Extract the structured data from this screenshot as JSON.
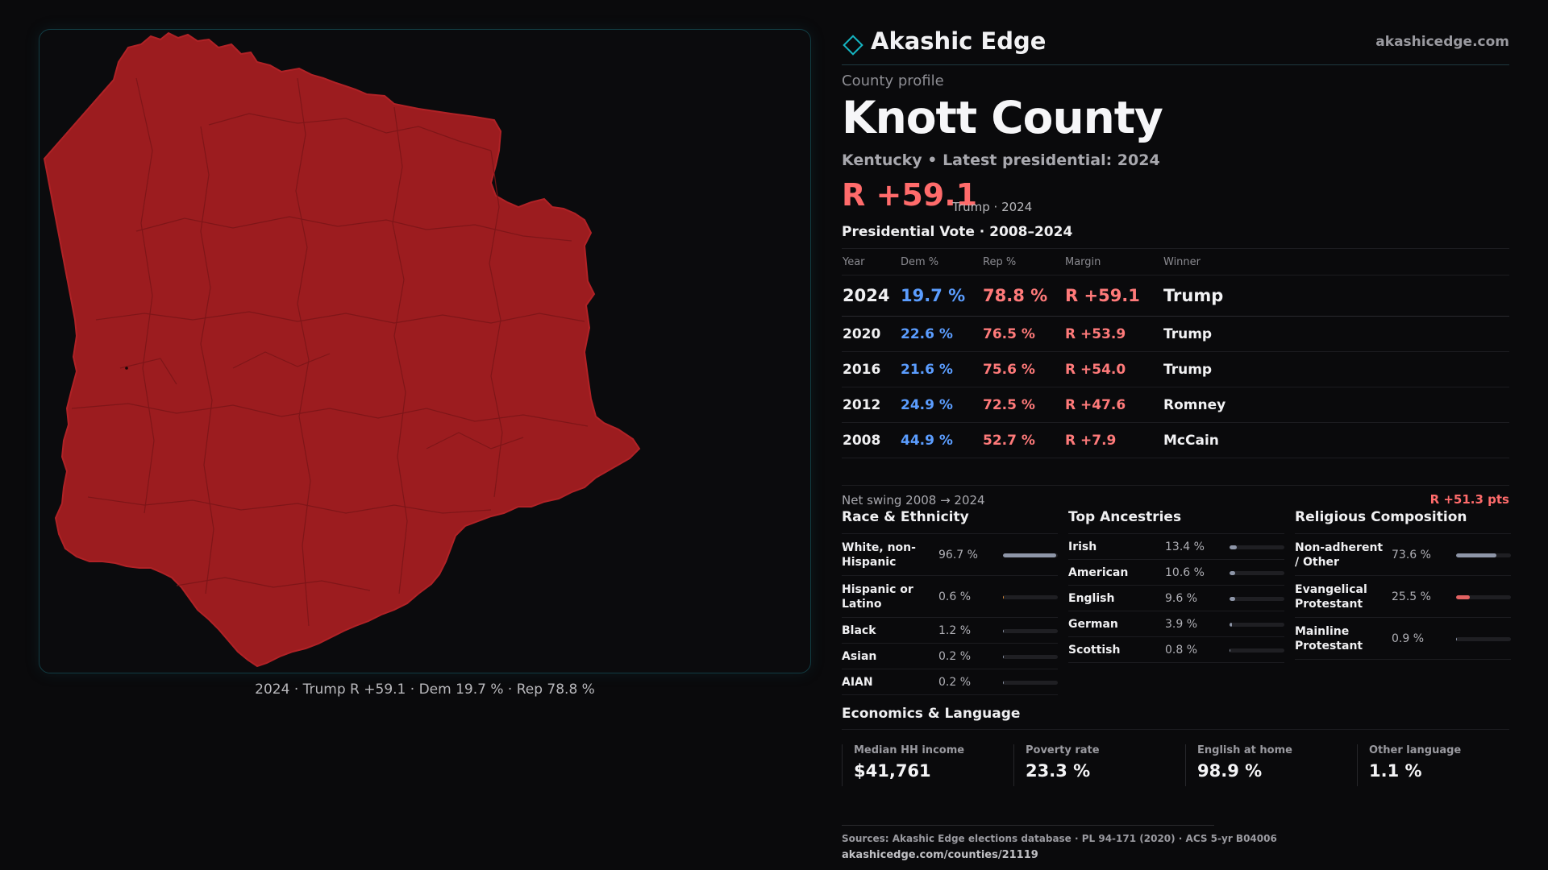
{
  "map": {
    "county_fill": "#9c1c1f",
    "caption": "2024 · Trump R +59.1 · Dem 19.7 % · Rep 78.8 %"
  },
  "brand": {
    "name": "Akashic Edge",
    "url": "akashicedge.com",
    "accent": "#15b5c2"
  },
  "profile": {
    "eyebrow": "County profile",
    "county": "Knott County",
    "subtitle": "Kentucky • Latest presidential: 2024",
    "margin": "R +59.1",
    "margin_note": "Trump · 2024"
  },
  "presidential": {
    "title": "Presidential Vote · 2008–2024",
    "headers": [
      "Year",
      "Dem %",
      "Rep %",
      "Margin",
      "Winner"
    ],
    "rows": [
      {
        "year": "2024",
        "dem": "19.7 %",
        "rep": "78.8 %",
        "margin": "R +59.1",
        "winner": "Trump"
      },
      {
        "year": "2020",
        "dem": "22.6 %",
        "rep": "76.5 %",
        "margin": "R +53.9",
        "winner": "Trump"
      },
      {
        "year": "2016",
        "dem": "21.6 %",
        "rep": "75.6 %",
        "margin": "R +54.0",
        "winner": "Trump"
      },
      {
        "year": "2012",
        "dem": "24.9 %",
        "rep": "72.5 %",
        "margin": "R +47.6",
        "winner": "Romney"
      },
      {
        "year": "2008",
        "dem": "44.9 %",
        "rep": "52.7 %",
        "margin": "R +7.9",
        "winner": "McCain"
      }
    ],
    "dem_color": "#5b9dff",
    "rep_color": "#ff7a7a"
  },
  "swing": {
    "label": "Net swing 2008 → 2024",
    "value": "R +51.3 pts"
  },
  "race": {
    "title": "Race & Ethnicity",
    "items": [
      {
        "label": "White, non-Hispanic",
        "value": "96.7 %",
        "pct": 96.7,
        "color": "#8e96a8"
      },
      {
        "label": "Hispanic or Latino",
        "value": "0.6 %",
        "pct": 0.6,
        "color": "#d98a3a"
      },
      {
        "label": "Black",
        "value": "1.2 %",
        "pct": 1.2,
        "color": "#8e96a8"
      },
      {
        "label": "Asian",
        "value": "0.2 %",
        "pct": 0.2,
        "color": "#8e96a8"
      },
      {
        "label": "AIAN",
        "value": "0.2 %",
        "pct": 0.2,
        "color": "#8e96a8"
      }
    ]
  },
  "ancestry": {
    "title": "Top Ancestries",
    "items": [
      {
        "label": "Irish",
        "value": "13.4 %",
        "pct": 13.4,
        "color": "#8e96a8"
      },
      {
        "label": "American",
        "value": "10.6 %",
        "pct": 10.6,
        "color": "#8e96a8"
      },
      {
        "label": "English",
        "value": "9.6 %",
        "pct": 9.6,
        "color": "#8e96a8"
      },
      {
        "label": "German",
        "value": "3.9 %",
        "pct": 3.9,
        "color": "#8e96a8"
      },
      {
        "label": "Scottish",
        "value": "0.8 %",
        "pct": 0.8,
        "color": "#8e96a8"
      }
    ]
  },
  "religion": {
    "title": "Religious Composition",
    "items": [
      {
        "label": "Non-adherent / Other",
        "value": "73.6 %",
        "pct": 73.6,
        "color": "#8e96a8"
      },
      {
        "label": "Evangelical Protestant",
        "value": "25.5 %",
        "pct": 25.5,
        "color": "#e26262"
      },
      {
        "label": "Mainline Protestant",
        "value": "0.9 %",
        "pct": 0.9,
        "color": "#8e96a8"
      }
    ]
  },
  "economics": {
    "title": "Economics & Language",
    "items": [
      {
        "label": "Median HH income",
        "value": "$41,761"
      },
      {
        "label": "Poverty rate",
        "value": "23.3 %"
      },
      {
        "label": "English at home",
        "value": "98.9 %"
      },
      {
        "label": "Other language",
        "value": "1.1 %"
      }
    ]
  },
  "sources": {
    "text": "Sources: Akashic Edge elections database · PL 94-171 (2020) · ACS 5-yr B04006",
    "url": "akashicedge.com/counties/21119"
  }
}
